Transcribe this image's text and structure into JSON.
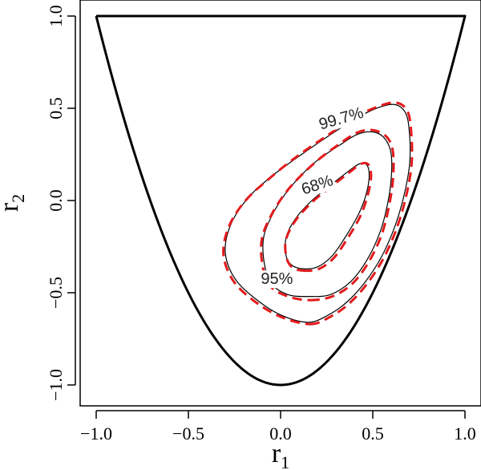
{
  "chart_data": {
    "type": "line",
    "title": "",
    "xlabel": {
      "base": "r",
      "sub": "1"
    },
    "ylabel": {
      "base": "r",
      "sub": "2"
    },
    "xlim": [
      -1.1,
      1.1
    ],
    "ylim": [
      -1.1,
      1.1
    ],
    "xticks": [
      -1.0,
      -0.5,
      0.0,
      0.5,
      1.0
    ],
    "yticks": [
      -1.0,
      -0.5,
      0.0,
      0.5,
      1.0
    ],
    "xtick_labels": [
      "-1.0",
      "-0.5",
      "0.0",
      "0.5",
      "1.0"
    ],
    "ytick_labels": [
      "-1.0",
      "-0.5",
      "0.0",
      "0.5",
      "1.0"
    ],
    "grid": false,
    "boundary": {
      "description_curve": "y = 2x^2 - 1 for x in [-1, 1], closed at y = 1",
      "points": [
        [
          -1.0,
          1.0
        ],
        [
          -0.9,
          0.62
        ],
        [
          -0.8,
          0.28
        ],
        [
          -0.7,
          -0.02
        ],
        [
          -0.6,
          -0.28
        ],
        [
          -0.5,
          -0.5
        ],
        [
          -0.4,
          -0.68
        ],
        [
          -0.3,
          -0.82
        ],
        [
          -0.2,
          -0.92
        ],
        [
          -0.1,
          -0.98
        ],
        [
          0.0,
          -1.0
        ],
        [
          0.1,
          -0.98
        ],
        [
          0.2,
          -0.92
        ],
        [
          0.3,
          -0.82
        ],
        [
          0.4,
          -0.68
        ],
        [
          0.5,
          -0.5
        ],
        [
          0.6,
          -0.28
        ],
        [
          0.7,
          -0.02
        ],
        [
          0.8,
          0.28
        ],
        [
          0.9,
          0.62
        ],
        [
          1.0,
          1.0
        ],
        [
          -1.0,
          1.0
        ]
      ]
    },
    "contours": [
      {
        "label": "68%",
        "solid_points": [
          [
            0.12,
            -0.37
          ],
          [
            0.2,
            -0.36
          ],
          [
            0.28,
            -0.3
          ],
          [
            0.35,
            -0.2
          ],
          [
            0.42,
            -0.08
          ],
          [
            0.46,
            0.02
          ],
          [
            0.48,
            0.12
          ],
          [
            0.47,
            0.19
          ],
          [
            0.43,
            0.2
          ],
          [
            0.37,
            0.16
          ],
          [
            0.28,
            0.09
          ],
          [
            0.17,
            0.0
          ],
          [
            0.08,
            -0.1
          ],
          [
            0.03,
            -0.2
          ],
          [
            0.03,
            -0.3
          ],
          [
            0.06,
            -0.35
          ],
          [
            0.12,
            -0.37
          ]
        ],
        "dashed_points": [
          [
            0.12,
            -0.38
          ],
          [
            0.21,
            -0.37
          ],
          [
            0.29,
            -0.31
          ],
          [
            0.36,
            -0.21
          ],
          [
            0.43,
            -0.09
          ],
          [
            0.47,
            0.02
          ],
          [
            0.49,
            0.12
          ],
          [
            0.48,
            0.19
          ],
          [
            0.44,
            0.2
          ],
          [
            0.37,
            0.15
          ],
          [
            0.28,
            0.08
          ],
          [
            0.17,
            -0.01
          ],
          [
            0.08,
            -0.11
          ],
          [
            0.03,
            -0.21
          ],
          [
            0.03,
            -0.3
          ],
          [
            0.06,
            -0.36
          ],
          [
            0.12,
            -0.38
          ]
        ],
        "label_pos": [
          0.2,
          0.08
        ]
      },
      {
        "label": "95%",
        "solid_points": [
          [
            0.15,
            -0.52
          ],
          [
            0.27,
            -0.51
          ],
          [
            0.38,
            -0.44
          ],
          [
            0.47,
            -0.32
          ],
          [
            0.54,
            -0.17
          ],
          [
            0.58,
            -0.02
          ],
          [
            0.6,
            0.12
          ],
          [
            0.6,
            0.25
          ],
          [
            0.57,
            0.33
          ],
          [
            0.51,
            0.37
          ],
          [
            0.42,
            0.36
          ],
          [
            0.32,
            0.3
          ],
          [
            0.19,
            0.21
          ],
          [
            0.06,
            0.08
          ],
          [
            -0.03,
            -0.05
          ],
          [
            -0.09,
            -0.19
          ],
          [
            -0.09,
            -0.33
          ],
          [
            -0.05,
            -0.45
          ],
          [
            0.04,
            -0.51
          ],
          [
            0.15,
            -0.52
          ]
        ],
        "dashed_points": [
          [
            0.16,
            -0.54
          ],
          [
            0.28,
            -0.52
          ],
          [
            0.39,
            -0.45
          ],
          [
            0.48,
            -0.33
          ],
          [
            0.55,
            -0.18
          ],
          [
            0.59,
            -0.02
          ],
          [
            0.61,
            0.12
          ],
          [
            0.61,
            0.26
          ],
          [
            0.58,
            0.34
          ],
          [
            0.51,
            0.38
          ],
          [
            0.42,
            0.37
          ],
          [
            0.31,
            0.3
          ],
          [
            0.18,
            0.2
          ],
          [
            0.05,
            0.07
          ],
          [
            -0.04,
            -0.06
          ],
          [
            -0.1,
            -0.2
          ],
          [
            -0.1,
            -0.34
          ],
          [
            -0.06,
            -0.46
          ],
          [
            0.04,
            -0.52
          ],
          [
            0.16,
            -0.54
          ]
        ],
        "label_pos": [
          -0.02,
          -0.43
        ]
      },
      {
        "label": "99.7%",
        "solid_points": [
          [
            0.15,
            -0.66
          ],
          [
            0.26,
            -0.62
          ],
          [
            0.36,
            -0.55
          ],
          [
            0.46,
            -0.44
          ],
          [
            0.55,
            -0.3
          ],
          [
            0.62,
            -0.14
          ],
          [
            0.67,
            0.03
          ],
          [
            0.7,
            0.2
          ],
          [
            0.7,
            0.35
          ],
          [
            0.68,
            0.47
          ],
          [
            0.62,
            0.52
          ],
          [
            0.52,
            0.5
          ],
          [
            0.4,
            0.44
          ],
          [
            0.26,
            0.35
          ],
          [
            0.1,
            0.24
          ],
          [
            -0.05,
            0.13
          ],
          [
            -0.18,
            0.01
          ],
          [
            -0.27,
            -0.13
          ],
          [
            -0.3,
            -0.28
          ],
          [
            -0.25,
            -0.42
          ],
          [
            -0.14,
            -0.53
          ],
          [
            0.0,
            -0.62
          ],
          [
            0.15,
            -0.66
          ]
        ],
        "dashed_points": [
          [
            0.16,
            -0.67
          ],
          [
            0.27,
            -0.63
          ],
          [
            0.37,
            -0.56
          ],
          [
            0.47,
            -0.45
          ],
          [
            0.56,
            -0.31
          ],
          [
            0.63,
            -0.15
          ],
          [
            0.68,
            0.02
          ],
          [
            0.71,
            0.19
          ],
          [
            0.71,
            0.35
          ],
          [
            0.69,
            0.48
          ],
          [
            0.63,
            0.53
          ],
          [
            0.53,
            0.51
          ],
          [
            0.4,
            0.45
          ],
          [
            0.25,
            0.35
          ],
          [
            0.09,
            0.24
          ],
          [
            -0.06,
            0.12
          ],
          [
            -0.19,
            0.0
          ],
          [
            -0.28,
            -0.14
          ],
          [
            -0.31,
            -0.29
          ],
          [
            -0.26,
            -0.43
          ],
          [
            -0.15,
            -0.54
          ],
          [
            0.0,
            -0.63
          ],
          [
            0.16,
            -0.67
          ]
        ],
        "label_pos": [
          0.33,
          0.44
        ]
      }
    ],
    "colors": {
      "solid_line": "#000000",
      "dashed_line": "#e31a1c",
      "boundary": "#000000",
      "label": "#222222"
    }
  }
}
